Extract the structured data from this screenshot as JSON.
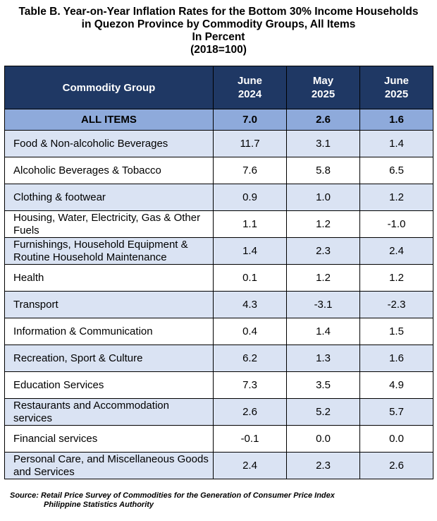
{
  "title": {
    "line1": "Table B. Year-on-Year Inflation Rates for the Bottom 30% Income Households",
    "line2": "in Quezon Province by Commodity Groups, All Items",
    "line3": "In Percent",
    "line4": "(2018=100)"
  },
  "table": {
    "headers": [
      "Commodity Group",
      "June\n2024",
      "May\n2025",
      "June\n2025"
    ],
    "all_items": [
      "ALL ITEMS",
      "7.0",
      "2.6",
      "1.6"
    ],
    "rows": [
      [
        "Food & Non-alcoholic Beverages",
        "11.7",
        "3.1",
        "1.4"
      ],
      [
        "Alcoholic Beverages & Tobacco",
        "7.6",
        "5.8",
        "6.5"
      ],
      [
        "Clothing & footwear",
        "0.9",
        "1.0",
        "1.2"
      ],
      [
        "Housing, Water, Electricity, Gas & Other Fuels",
        "1.1",
        "1.2",
        "-1.0"
      ],
      [
        "Furnishings, Household Equipment & Routine Household Maintenance",
        "1.4",
        "2.3",
        "2.4"
      ],
      [
        "Health",
        "0.1",
        "1.2",
        "1.2"
      ],
      [
        "Transport",
        "4.3",
        "-3.1",
        "-2.3"
      ],
      [
        "Information & Communication",
        "0.4",
        "1.4",
        "1.5"
      ],
      [
        "Recreation, Sport & Culture",
        "6.2",
        "1.3",
        "1.6"
      ],
      [
        "Education Services",
        "7.3",
        "3.5",
        "4.9"
      ],
      [
        "Restaurants and Accommodation services",
        "2.6",
        "5.2",
        "5.7"
      ],
      [
        "Financial services",
        "-0.1",
        "0.0",
        "0.0"
      ],
      [
        "Personal Care, and Miscellaneous Goods and Services",
        "2.4",
        "2.3",
        "2.6"
      ]
    ]
  },
  "source": {
    "line1": "Source: Retail Price Survey of Commodities for the Generation of Consumer Price Index",
    "line2": "Philippine Statistics Authority"
  },
  "colors": {
    "header_bg": "#1f3864",
    "all_items_bg": "#8eaadb",
    "shaded_row_bg": "#dae3f3"
  }
}
